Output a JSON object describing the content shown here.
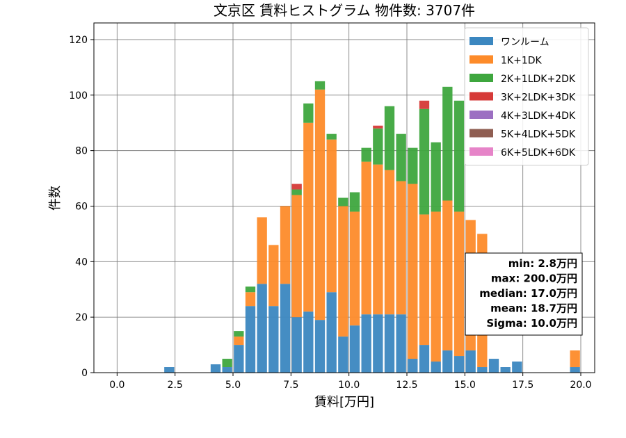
{
  "chart_data": {
    "type": "bar",
    "stacked": true,
    "title": "文京区 賃料ヒストグラム 物件数: 3707件",
    "xlabel": "賃料[万円]",
    "ylabel": "件数",
    "xlim": [
      -1,
      20.6
    ],
    "ylim": [
      0,
      126
    ],
    "xticks": [
      "0.0",
      "2.5",
      "5.0",
      "7.5",
      "10.0",
      "12.5",
      "15.0",
      "17.5",
      "20.0"
    ],
    "yticks": [
      "0",
      "20",
      "40",
      "60",
      "80",
      "100",
      "120"
    ],
    "bin_width": 0.5,
    "grid": true,
    "legend_position": "top-right",
    "x": [
      2.25,
      4.25,
      4.75,
      5.25,
      5.75,
      6.25,
      6.75,
      7.25,
      7.75,
      8.25,
      8.75,
      9.25,
      9.75,
      10.25,
      10.75,
      11.25,
      11.75,
      12.25,
      12.75,
      13.25,
      13.75,
      14.25,
      14.75,
      15.25,
      15.75,
      16.25,
      16.75,
      17.25,
      17.75,
      18.25,
      18.75,
      19.25,
      19.75
    ],
    "series": [
      {
        "name": "ワンルーム",
        "color": "#3b87c0",
        "values": [
          2,
          3,
          2,
          10,
          24,
          32,
          24,
          32,
          20,
          22,
          19,
          29,
          13,
          17,
          21,
          21,
          21,
          21,
          5,
          10,
          4,
          8,
          6,
          8,
          2,
          5,
          2,
          4,
          0,
          0,
          0,
          0,
          2
        ]
      },
      {
        "name": "1K+1DK",
        "color": "#fd8b2a",
        "values": [
          0,
          0,
          0,
          3,
          5,
          24,
          22,
          28,
          44,
          68,
          83,
          55,
          47,
          41,
          55,
          54,
          52,
          48,
          63,
          47,
          54,
          54,
          52,
          47,
          48,
          0,
          0,
          0,
          0,
          0,
          0,
          0,
          6
        ]
      },
      {
        "name": "2K+1LDK+2DK",
        "color": "#3ea63e",
        "values": [
          0,
          0,
          3,
          2,
          2,
          0,
          0,
          0,
          2,
          7,
          3,
          2,
          3,
          7,
          5,
          13,
          23,
          17,
          13,
          38,
          25,
          41,
          40,
          0,
          0,
          0,
          0,
          0,
          0,
          0,
          0,
          0,
          0
        ]
      },
      {
        "name": "3K+2LDK+3DK",
        "color": "#d63a38",
        "values": [
          0,
          0,
          0,
          0,
          0,
          0,
          0,
          0,
          2,
          0,
          0,
          0,
          0,
          0,
          0,
          1,
          0,
          0,
          0,
          3,
          0,
          0,
          0,
          0,
          0,
          0,
          0,
          0,
          0,
          0,
          0,
          0,
          0
        ]
      },
      {
        "name": "4K+3LDK+4DK",
        "color": "#9c6fc2",
        "values": [
          0,
          0,
          0,
          0,
          0,
          0,
          0,
          0,
          0,
          0,
          0,
          0,
          0,
          0,
          0,
          0,
          0,
          0,
          0,
          0,
          0,
          0,
          0,
          0,
          0,
          0,
          0,
          0,
          0,
          0,
          0,
          0,
          0
        ]
      },
      {
        "name": "5K+4LDK+5DK",
        "color": "#8f5e52",
        "values": [
          0,
          0,
          0,
          0,
          0,
          0,
          0,
          0,
          0,
          0,
          0,
          0,
          0,
          0,
          0,
          0,
          0,
          0,
          0,
          0,
          0,
          0,
          0,
          0,
          0,
          0,
          0,
          0,
          0,
          0,
          0,
          0,
          0
        ]
      },
      {
        "name": "6K+5LDK+6DK",
        "color": "#e684c8",
        "values": [
          0,
          0,
          0,
          0,
          0,
          0,
          0,
          0,
          0,
          0,
          0,
          0,
          0,
          0,
          0,
          0,
          0,
          0,
          0,
          0,
          0,
          0,
          0,
          0,
          0,
          0,
          0,
          0,
          0,
          0,
          0,
          0,
          0
        ]
      }
    ],
    "stats": [
      "min: 2.8万円",
      "max: 200.0万円",
      "median: 17.0万円",
      "mean: 18.7万円",
      "Sigma: 10.0万円"
    ]
  }
}
